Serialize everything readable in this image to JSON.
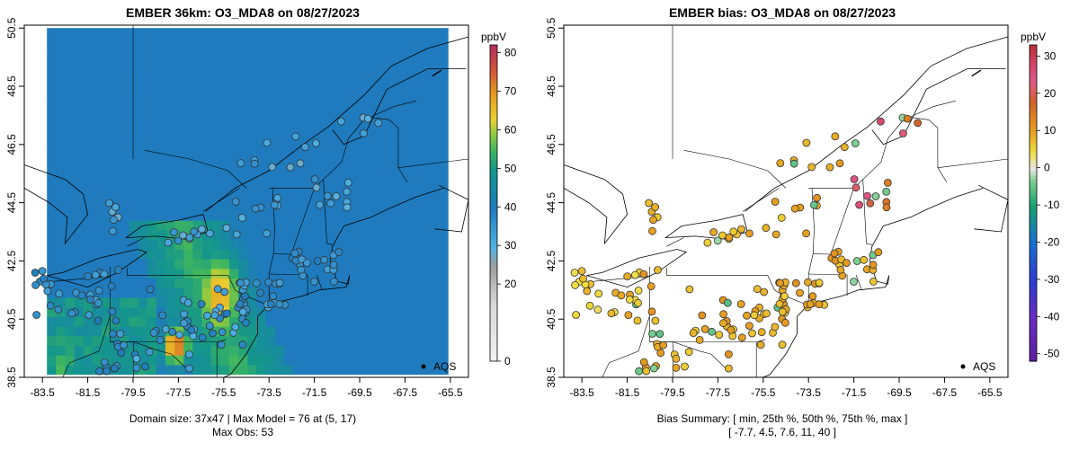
{
  "chart_data": [
    {
      "type": "heatmap",
      "title": "EMBER 36km: O3_MDA8 on 08/27/2023",
      "colorbar_label": "ppbV",
      "colorbar_ticks": [
        "80",
        "70",
        "60",
        "50",
        "40",
        "30",
        "20",
        "0"
      ],
      "colorbar_range": [
        0,
        82
      ],
      "xticks": [
        "-83.5",
        "-81.5",
        "-79.5",
        "-77.5",
        "-75.5",
        "-73.5",
        "-71.5",
        "-69.5",
        "-67.5",
        "-65.5"
      ],
      "yticks": [
        "50.5",
        "48.5",
        "46.5",
        "44.5",
        "42.5",
        "40.5",
        "38.5"
      ],
      "xlim": [
        -84.3,
        -64.7
      ],
      "ylim": [
        38.5,
        50.6
      ],
      "legend": "AQS",
      "footer_line1": "Domain size: 37x47 | Max Model = 76 at (5, 17)",
      "footer_line2": "Max Obs: 53",
      "colors": {
        "high": "#c83c3c",
        "orange": "#e69b1e",
        "yellow": "#f0d232",
        "green": "#3cb464",
        "teal": "#14968c",
        "blue": "#1e78b4",
        "lightblue": "#50aadc",
        "gray": "#a0a0a0",
        "white": "#f0f0f0"
      }
    },
    {
      "type": "scatter",
      "title": "EMBER bias: O3_MDA8 on 08/27/2023",
      "colorbar_label": "ppbV",
      "colorbar_ticks": [
        "30",
        "20",
        "10",
        "0",
        "-10",
        "-20",
        "-30",
        "-40",
        "-50"
      ],
      "colorbar_range": [
        -52,
        33
      ],
      "xticks": [
        "-83.5",
        "-81.5",
        "-79.5",
        "-77.5",
        "-75.5",
        "-73.5",
        "-71.5",
        "-69.5",
        "-67.5",
        "-65.5"
      ],
      "yticks": [
        "50.5",
        "48.5",
        "46.5",
        "44.5",
        "42.5",
        "40.5",
        "38.5"
      ],
      "xlim": [
        -84.3,
        -64.7
      ],
      "ylim": [
        38.5,
        50.6
      ],
      "legend": "AQS",
      "footer_line1": "Bias Summary: [ min, 25th %, 50th %, 75th %, max ]",
      "footer_line2": "[ -7.7,   4.5,   7.6,   11,   40 ]",
      "bias_summary": {
        "min": -7.7,
        "p25": 4.5,
        "p50": 7.6,
        "p75": 11,
        "max": 40
      }
    }
  ]
}
